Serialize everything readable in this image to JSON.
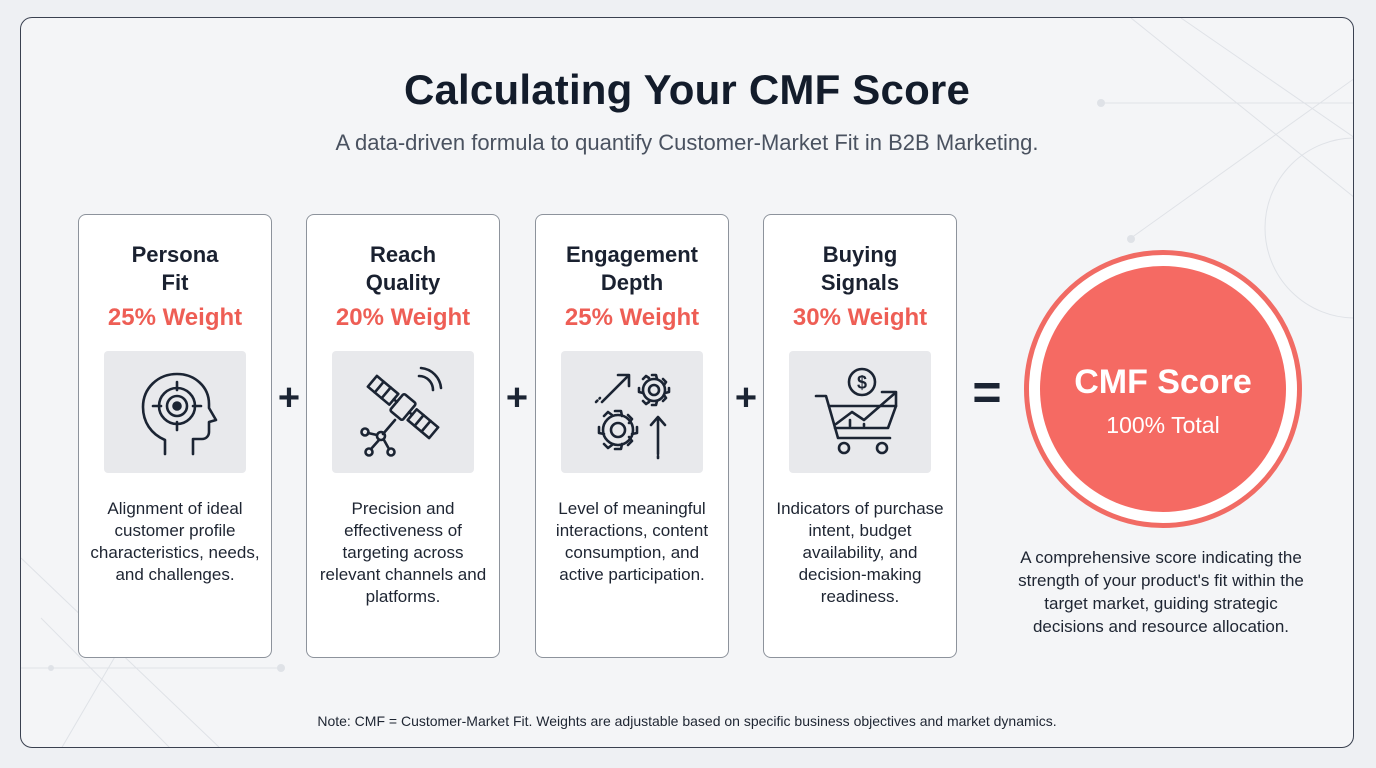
{
  "header": {
    "title": "Calculating Your CMF Score",
    "subtitle": "A data-driven formula to quantify Customer-Market Fit in B2B Marketing."
  },
  "components": [
    {
      "title_line1": "Persona",
      "title_line2": "Fit",
      "weight": "25% Weight",
      "icon": "head-target-icon",
      "description": "Alignment of ideal customer profile characteristics, needs, and challenges."
    },
    {
      "title_line1": "Reach",
      "title_line2": "Quality",
      "weight": "20% Weight",
      "icon": "satellite-network-icon",
      "description": "Precision and effectiveness of targeting across relevant channels and platforms."
    },
    {
      "title_line1": "Engagement",
      "title_line2": "Depth",
      "weight": "25% Weight",
      "icon": "gears-arrows-icon",
      "description": "Level of meaningful interactions, content consumption, and active participation."
    },
    {
      "title_line1": "Buying",
      "title_line2": "Signals",
      "weight": "30% Weight",
      "icon": "cart-growth-icon",
      "description": "Indicators of purchase intent, budget availability, and decision-making readiness."
    }
  ],
  "operators": [
    "+",
    "+",
    "+",
    "="
  ],
  "result": {
    "title": "CMF Score",
    "total": "100% Total",
    "description": "A comprehensive score indicating the strength of your product's fit within the target market, guiding strategic decisions and resource allocation."
  },
  "note": "Note: CMF = Customer-Market Fit. Weights are adjustable based on specific business objectives and market dynamics.",
  "colors": {
    "accent": "#ee5e55",
    "score_fill": "#f56a63",
    "text": "#1b2433",
    "background": "#f4f5f7"
  }
}
